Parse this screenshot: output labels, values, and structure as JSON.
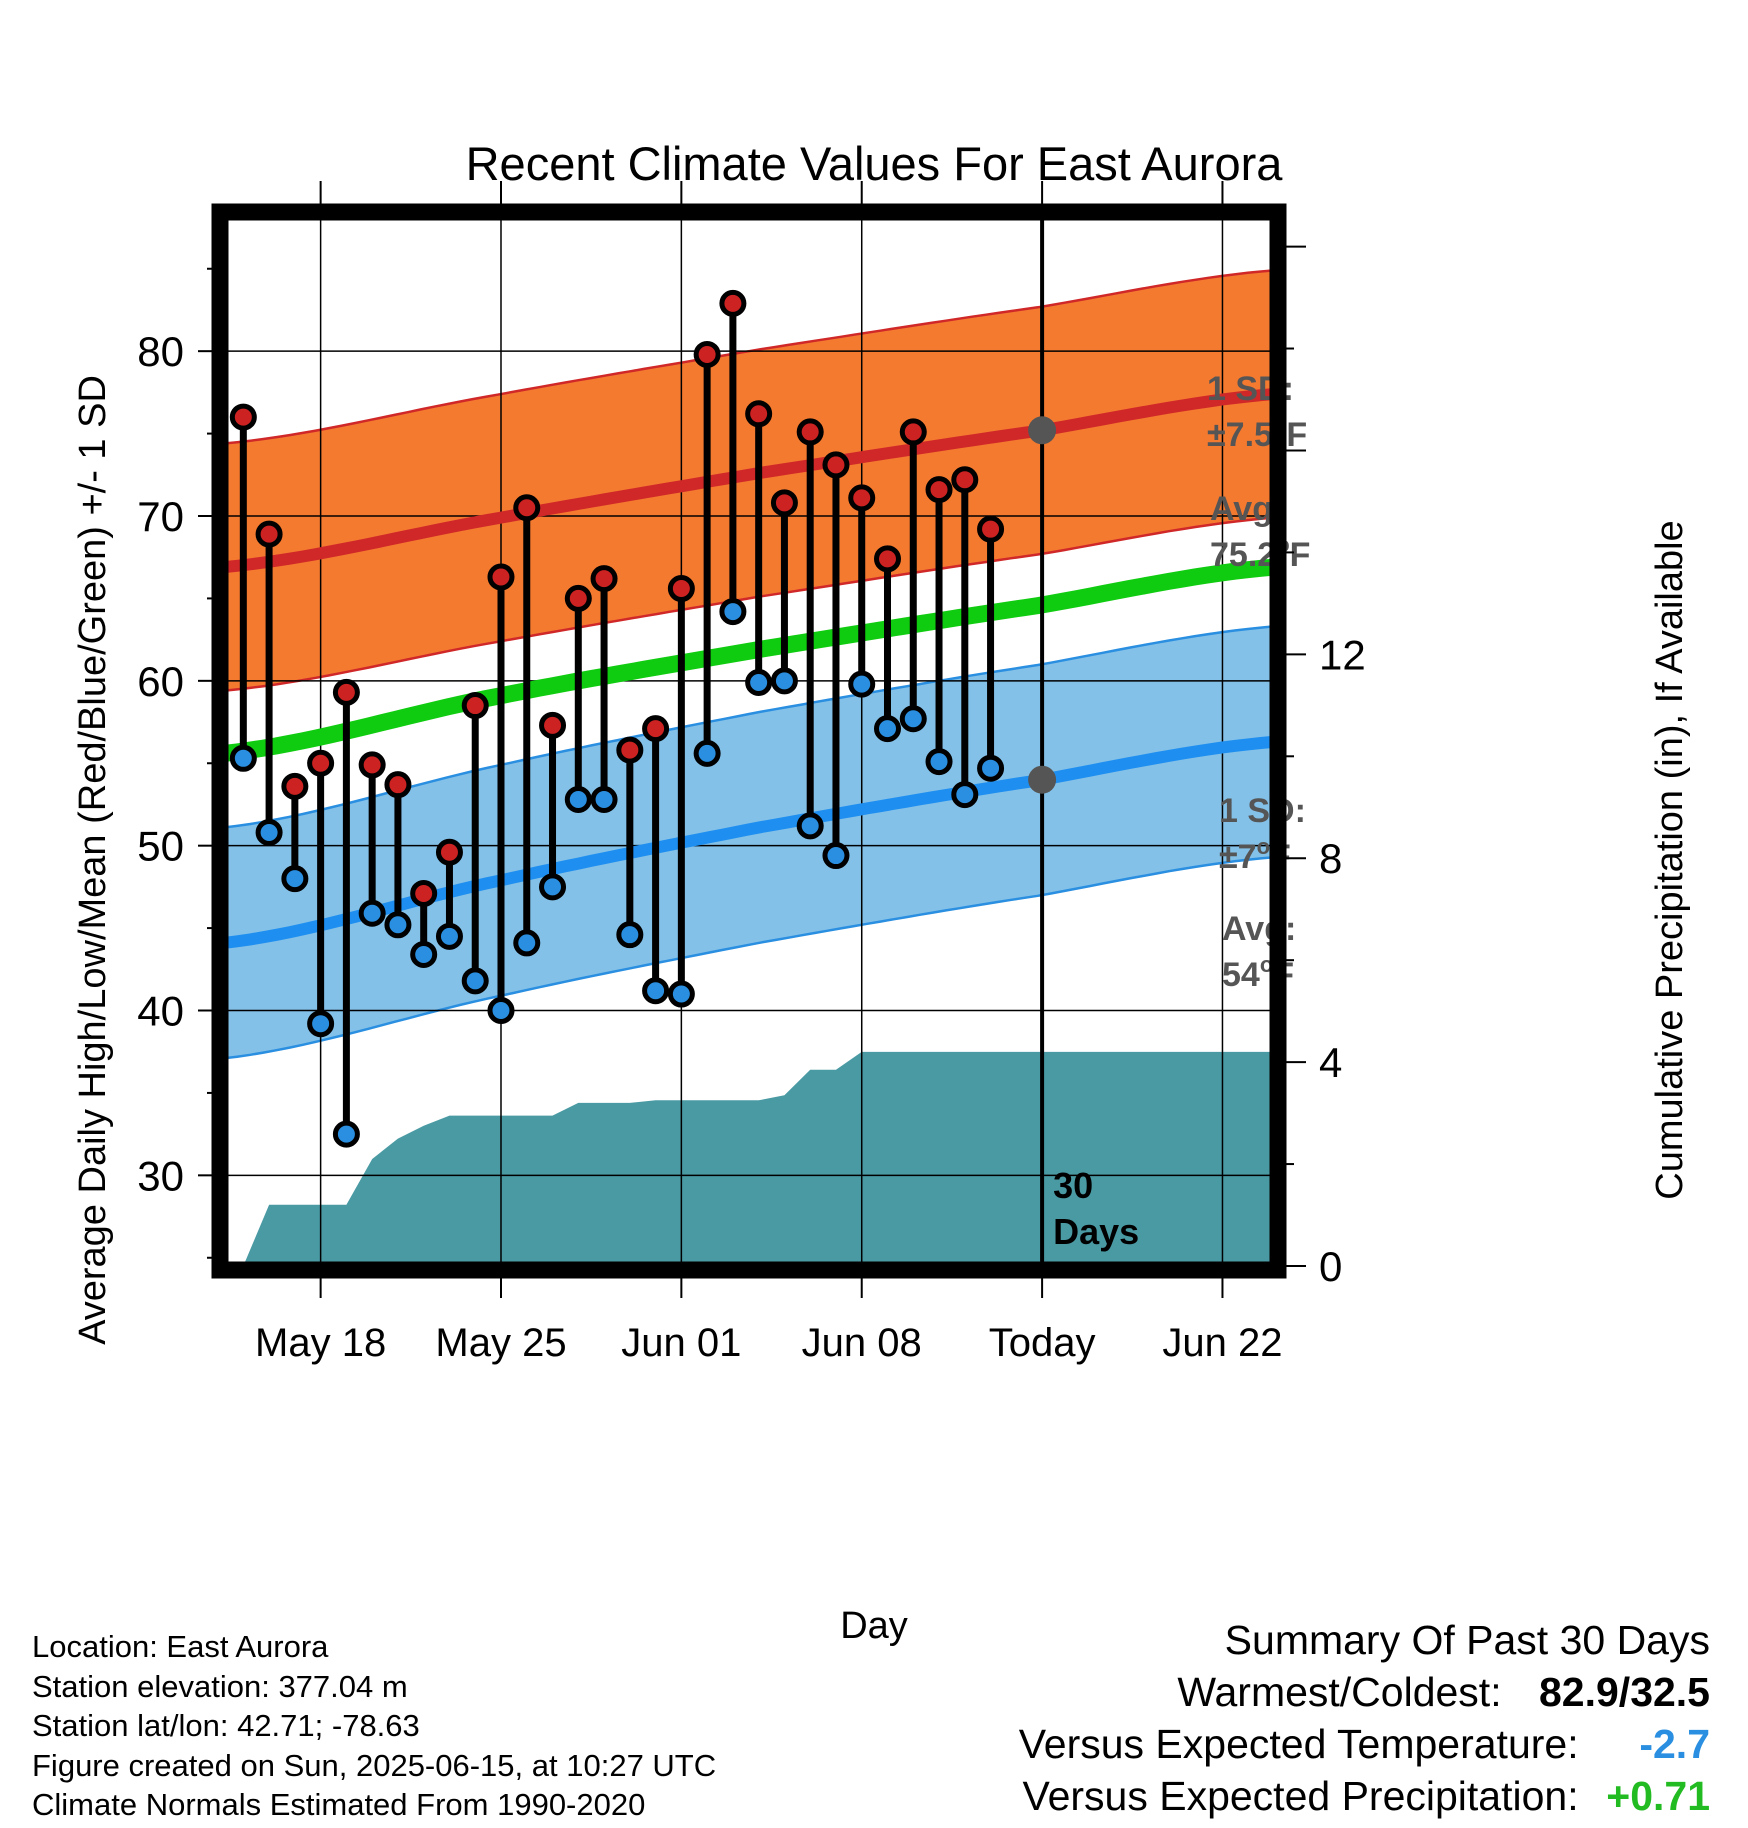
{
  "colors": {
    "high_marker": "#cc2222",
    "low_marker": "#2a8fe0",
    "high_band": "#f47a30",
    "high_band_edge": "#d02828",
    "low_band": "#84c1e8",
    "low_band_edge": "#2a8fe0",
    "mean_line": "#10cc10",
    "high_avg_line": "#d02828",
    "low_avg_line": "#1e8ff0",
    "precip_fill": "#4a9aa4",
    "annotation_text": "#555555",
    "anomaly_temp": "#2a8fe0",
    "anomaly_precip": "#22bb22"
  },
  "chart_data": {
    "type": "line",
    "title": "Recent Climate Values For East Aurora",
    "xlabel": "Day",
    "ylabel": "Average Daily High/Low/Mean (Red/Blue/Green) +/- 1 SD",
    "y2label": "Cumulative Precipitation (in), If Available",
    "x_tick_labels": [
      "May 18",
      "May 25",
      "Jun 01",
      "Jun 08",
      "Today",
      "Jun 22"
    ],
    "x_tick_dates": [
      "2025-05-18",
      "2025-05-25",
      "2025-06-01",
      "2025-06-08",
      "2025-06-15",
      "2025-06-22"
    ],
    "x_range": [
      "2025-05-14T18:00",
      "2025-06-24T12:00"
    ],
    "ylim": [
      24.5,
      88.2
    ],
    "y_ticks": [
      30,
      40,
      50,
      60,
      70,
      80
    ],
    "y2lim": [
      0,
      20.6
    ],
    "y2_ticks": [
      0,
      4,
      8,
      12
    ],
    "grid": true,
    "today": "2025-06-15",
    "days_label": "30 Days",
    "dates": [
      "2025-05-15",
      "2025-05-16",
      "2025-05-17",
      "2025-05-18",
      "2025-05-19",
      "2025-05-20",
      "2025-05-21",
      "2025-05-22",
      "2025-05-23",
      "2025-05-24",
      "2025-05-25",
      "2025-05-26",
      "2025-05-27",
      "2025-05-28",
      "2025-05-29",
      "2025-05-30",
      "2025-05-31",
      "2025-06-01",
      "2025-06-02",
      "2025-06-03",
      "2025-06-04",
      "2025-06-05",
      "2025-06-06",
      "2025-06-07",
      "2025-06-08",
      "2025-06-09",
      "2025-06-10",
      "2025-06-11",
      "2025-06-12",
      "2025-06-13",
      "2025-06-14"
    ],
    "series": [
      {
        "name": "High",
        "values": [
          76.0,
          68.9,
          53.6,
          55.0,
          59.3,
          54.9,
          53.7,
          47.1,
          49.6,
          58.5,
          66.3,
          70.5,
          57.3,
          65.0,
          66.2,
          55.8,
          57.1,
          65.6,
          79.8,
          82.9,
          76.2,
          70.8,
          75.1,
          73.1,
          71.1,
          67.4,
          75.1,
          71.6,
          72.2,
          69.2,
          null
        ]
      },
      {
        "name": "Low",
        "values": [
          55.3,
          50.8,
          48.0,
          39.2,
          32.5,
          45.9,
          45.2,
          43.4,
          44.5,
          41.8,
          40.0,
          44.1,
          47.5,
          52.8,
          52.8,
          44.6,
          41.2,
          41.0,
          55.6,
          64.2,
          59.9,
          60.0,
          51.2,
          49.4,
          59.8,
          57.1,
          57.7,
          55.1,
          53.1,
          54.7,
          null
        ]
      }
    ],
    "normals": {
      "x": [
        "2025-05-14T18:00",
        "2025-05-25",
        "2025-06-04",
        "2025-06-15",
        "2025-06-24T12:00"
      ],
      "avg_high": [
        66.9,
        69.9,
        72.6,
        75.2,
        77.4
      ],
      "high_sd": 7.5,
      "mean": [
        55.6,
        59.1,
        61.9,
        64.6,
        66.9
      ],
      "avg_low": [
        44.1,
        47.9,
        51.1,
        54.0,
        56.3
      ],
      "low_sd": 7.0
    },
    "precip": {
      "x": [
        "2025-05-15",
        "2025-05-16",
        "2025-05-18",
        "2025-05-19",
        "2025-05-20",
        "2025-05-21",
        "2025-05-22",
        "2025-05-23",
        "2025-05-24",
        "2025-05-25",
        "2025-05-27",
        "2025-05-28",
        "2025-05-30",
        "2025-05-31",
        "2025-06-04",
        "2025-06-05",
        "2025-06-06",
        "2025-06-07",
        "2025-06-08",
        "2025-06-09",
        "2025-06-24T12:00"
      ],
      "values": [
        0.0,
        1.2,
        1.2,
        1.2,
        2.1,
        2.5,
        2.75,
        2.95,
        2.95,
        2.95,
        2.95,
        3.2,
        3.2,
        3.25,
        3.25,
        3.35,
        3.85,
        3.85,
        4.2,
        4.2,
        4.2
      ]
    },
    "annotations": {
      "high_sd": {
        "label": "1 SD:",
        "value": "±7.5",
        "unit": "F"
      },
      "high_avg": {
        "label": "Avg:",
        "value": "75.2",
        "unit": "F"
      },
      "low_sd": {
        "label": "1 SD:",
        "value": "±7",
        "unit": "F"
      },
      "low_avg": {
        "label": "Avg:",
        "value": "54",
        "unit": "F"
      },
      "degree": "o"
    }
  },
  "footer": {
    "location": "Location: East Aurora",
    "elevation": "Station elevation: 377.04 m",
    "latlon": "Station lat/lon: 42.71; -78.63",
    "created": "Figure created on Sun, 2025-06-15, at 10:27 UTC",
    "normals_period": "Climate Normals Estimated From 1990-2020"
  },
  "summary": {
    "title": "Summary Of Past 30 Days",
    "warmest_coldest_label": "Warmest/Coldest:",
    "warmest_coldest_value": "82.9/32.5",
    "temp_label": "Versus Expected Temperature:",
    "temp_value": "-2.7",
    "precip_label": "Versus Expected Precipitation:",
    "precip_value": "+0.71"
  }
}
